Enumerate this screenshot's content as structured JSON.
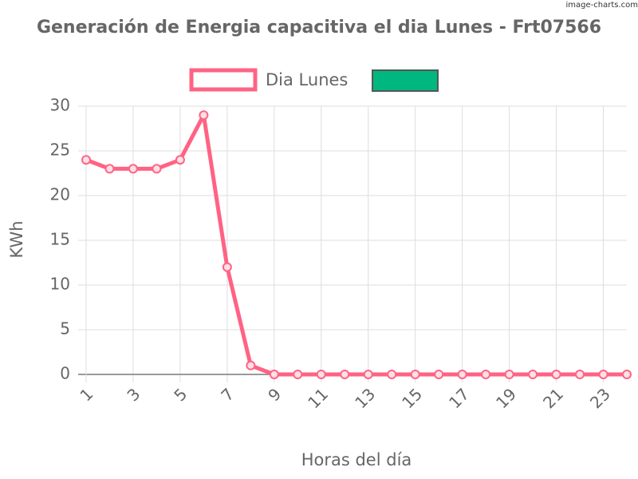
{
  "chart_data": {
    "type": "line",
    "title": "Generación de Energia capacitiva el dia Lunes - Frt07566",
    "watermark": "image-charts.com",
    "x_label": "Horas del día",
    "y_label": "KWh",
    "x": [
      1,
      2,
      3,
      4,
      5,
      6,
      7,
      8,
      9,
      10,
      11,
      12,
      13,
      14,
      15,
      16,
      17,
      18,
      19,
      20,
      21,
      22,
      23,
      24
    ],
    "xlim": [
      1,
      24
    ],
    "xticks": [
      1,
      3,
      5,
      7,
      9,
      11,
      13,
      15,
      17,
      19,
      21,
      23
    ],
    "ylim": [
      0,
      30
    ],
    "yticks": [
      0,
      5,
      10,
      15,
      20,
      25,
      30
    ],
    "grid": true,
    "legend": "top",
    "series": [
      {
        "name": "Dia Lunes",
        "color": "#ff6384",
        "values": [
          24,
          23,
          23,
          23,
          24,
          29,
          12,
          1,
          0,
          0,
          0,
          0,
          0,
          0,
          0,
          0,
          0,
          0,
          0,
          0,
          0,
          0,
          0,
          0
        ]
      },
      {
        "color": "#00b77f"
      }
    ]
  }
}
